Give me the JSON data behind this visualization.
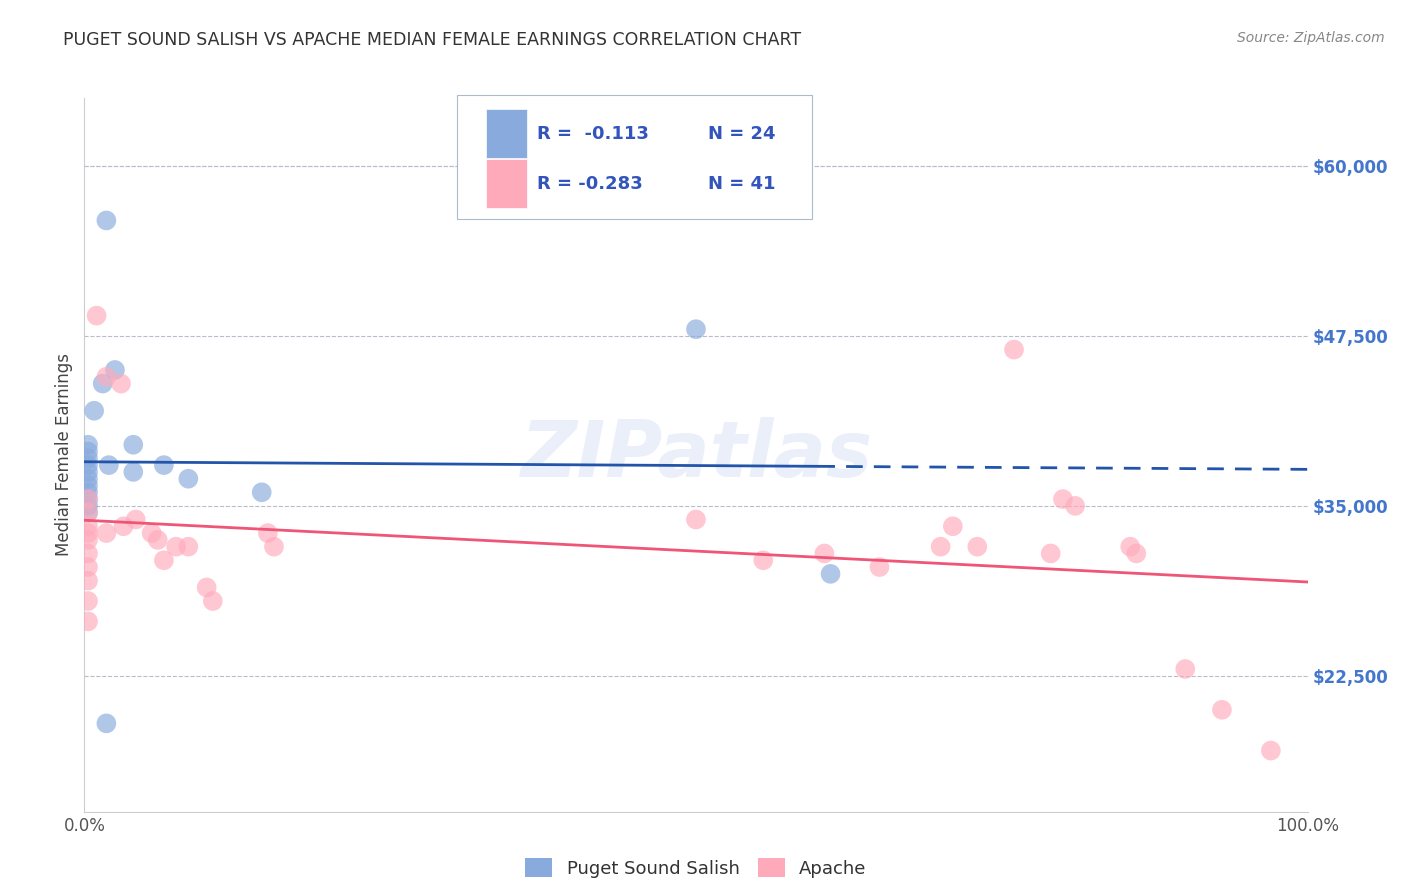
{
  "title": "PUGET SOUND SALISH VS APACHE MEDIAN FEMALE EARNINGS CORRELATION CHART",
  "source": "Source: ZipAtlas.com",
  "ylabel": "Median Female Earnings",
  "xlim": [
    0,
    1.0
  ],
  "ylim": [
    12500,
    65000
  ],
  "yticks": [
    22500,
    35000,
    47500,
    60000
  ],
  "ytick_labels": [
    "$22,500",
    "$35,000",
    "$47,500",
    "$60,000"
  ],
  "xtick_labels": [
    "0.0%",
    "100.0%"
  ],
  "watermark": "ZIPatlas",
  "blue_color": "#88AADD",
  "pink_color": "#FFAABB",
  "blue_line_color": "#2255AA",
  "pink_line_color": "#EE5577",
  "grid_color": "#BBBBCC",
  "legend_text_color": "#3355BB",
  "tick_label_color": "#4477CC",
  "blue_points": [
    [
      0.018,
      56000
    ],
    [
      0.008,
      42000
    ],
    [
      0.015,
      44000
    ],
    [
      0.025,
      45000
    ],
    [
      0.003,
      39500
    ],
    [
      0.003,
      39000
    ],
    [
      0.003,
      38500
    ],
    [
      0.003,
      38000
    ],
    [
      0.003,
      37500
    ],
    [
      0.003,
      37000
    ],
    [
      0.003,
      36500
    ],
    [
      0.003,
      36000
    ],
    [
      0.003,
      35500
    ],
    [
      0.003,
      35000
    ],
    [
      0.003,
      34500
    ],
    [
      0.02,
      38000
    ],
    [
      0.04,
      37500
    ],
    [
      0.04,
      39500
    ],
    [
      0.065,
      38000
    ],
    [
      0.085,
      37000
    ],
    [
      0.145,
      36000
    ],
    [
      0.5,
      48000
    ],
    [
      0.61,
      30000
    ],
    [
      0.018,
      19000
    ]
  ],
  "pink_points": [
    [
      0.003,
      35500
    ],
    [
      0.003,
      34500
    ],
    [
      0.003,
      33500
    ],
    [
      0.003,
      33000
    ],
    [
      0.003,
      32500
    ],
    [
      0.003,
      31500
    ],
    [
      0.003,
      30500
    ],
    [
      0.003,
      29500
    ],
    [
      0.003,
      28000
    ],
    [
      0.003,
      26500
    ],
    [
      0.01,
      49000
    ],
    [
      0.018,
      44500
    ],
    [
      0.03,
      44000
    ],
    [
      0.018,
      33000
    ],
    [
      0.032,
      33500
    ],
    [
      0.042,
      34000
    ],
    [
      0.055,
      33000
    ],
    [
      0.06,
      32500
    ],
    [
      0.065,
      31000
    ],
    [
      0.075,
      32000
    ],
    [
      0.085,
      32000
    ],
    [
      0.1,
      29000
    ],
    [
      0.105,
      28000
    ],
    [
      0.15,
      33000
    ],
    [
      0.155,
      32000
    ],
    [
      0.5,
      34000
    ],
    [
      0.555,
      31000
    ],
    [
      0.605,
      31500
    ],
    [
      0.65,
      30500
    ],
    [
      0.7,
      32000
    ],
    [
      0.71,
      33500
    ],
    [
      0.73,
      32000
    ],
    [
      0.76,
      46500
    ],
    [
      0.79,
      31500
    ],
    [
      0.8,
      35500
    ],
    [
      0.81,
      35000
    ],
    [
      0.855,
      32000
    ],
    [
      0.86,
      31500
    ],
    [
      0.9,
      23000
    ],
    [
      0.93,
      20000
    ],
    [
      0.97,
      17000
    ]
  ]
}
